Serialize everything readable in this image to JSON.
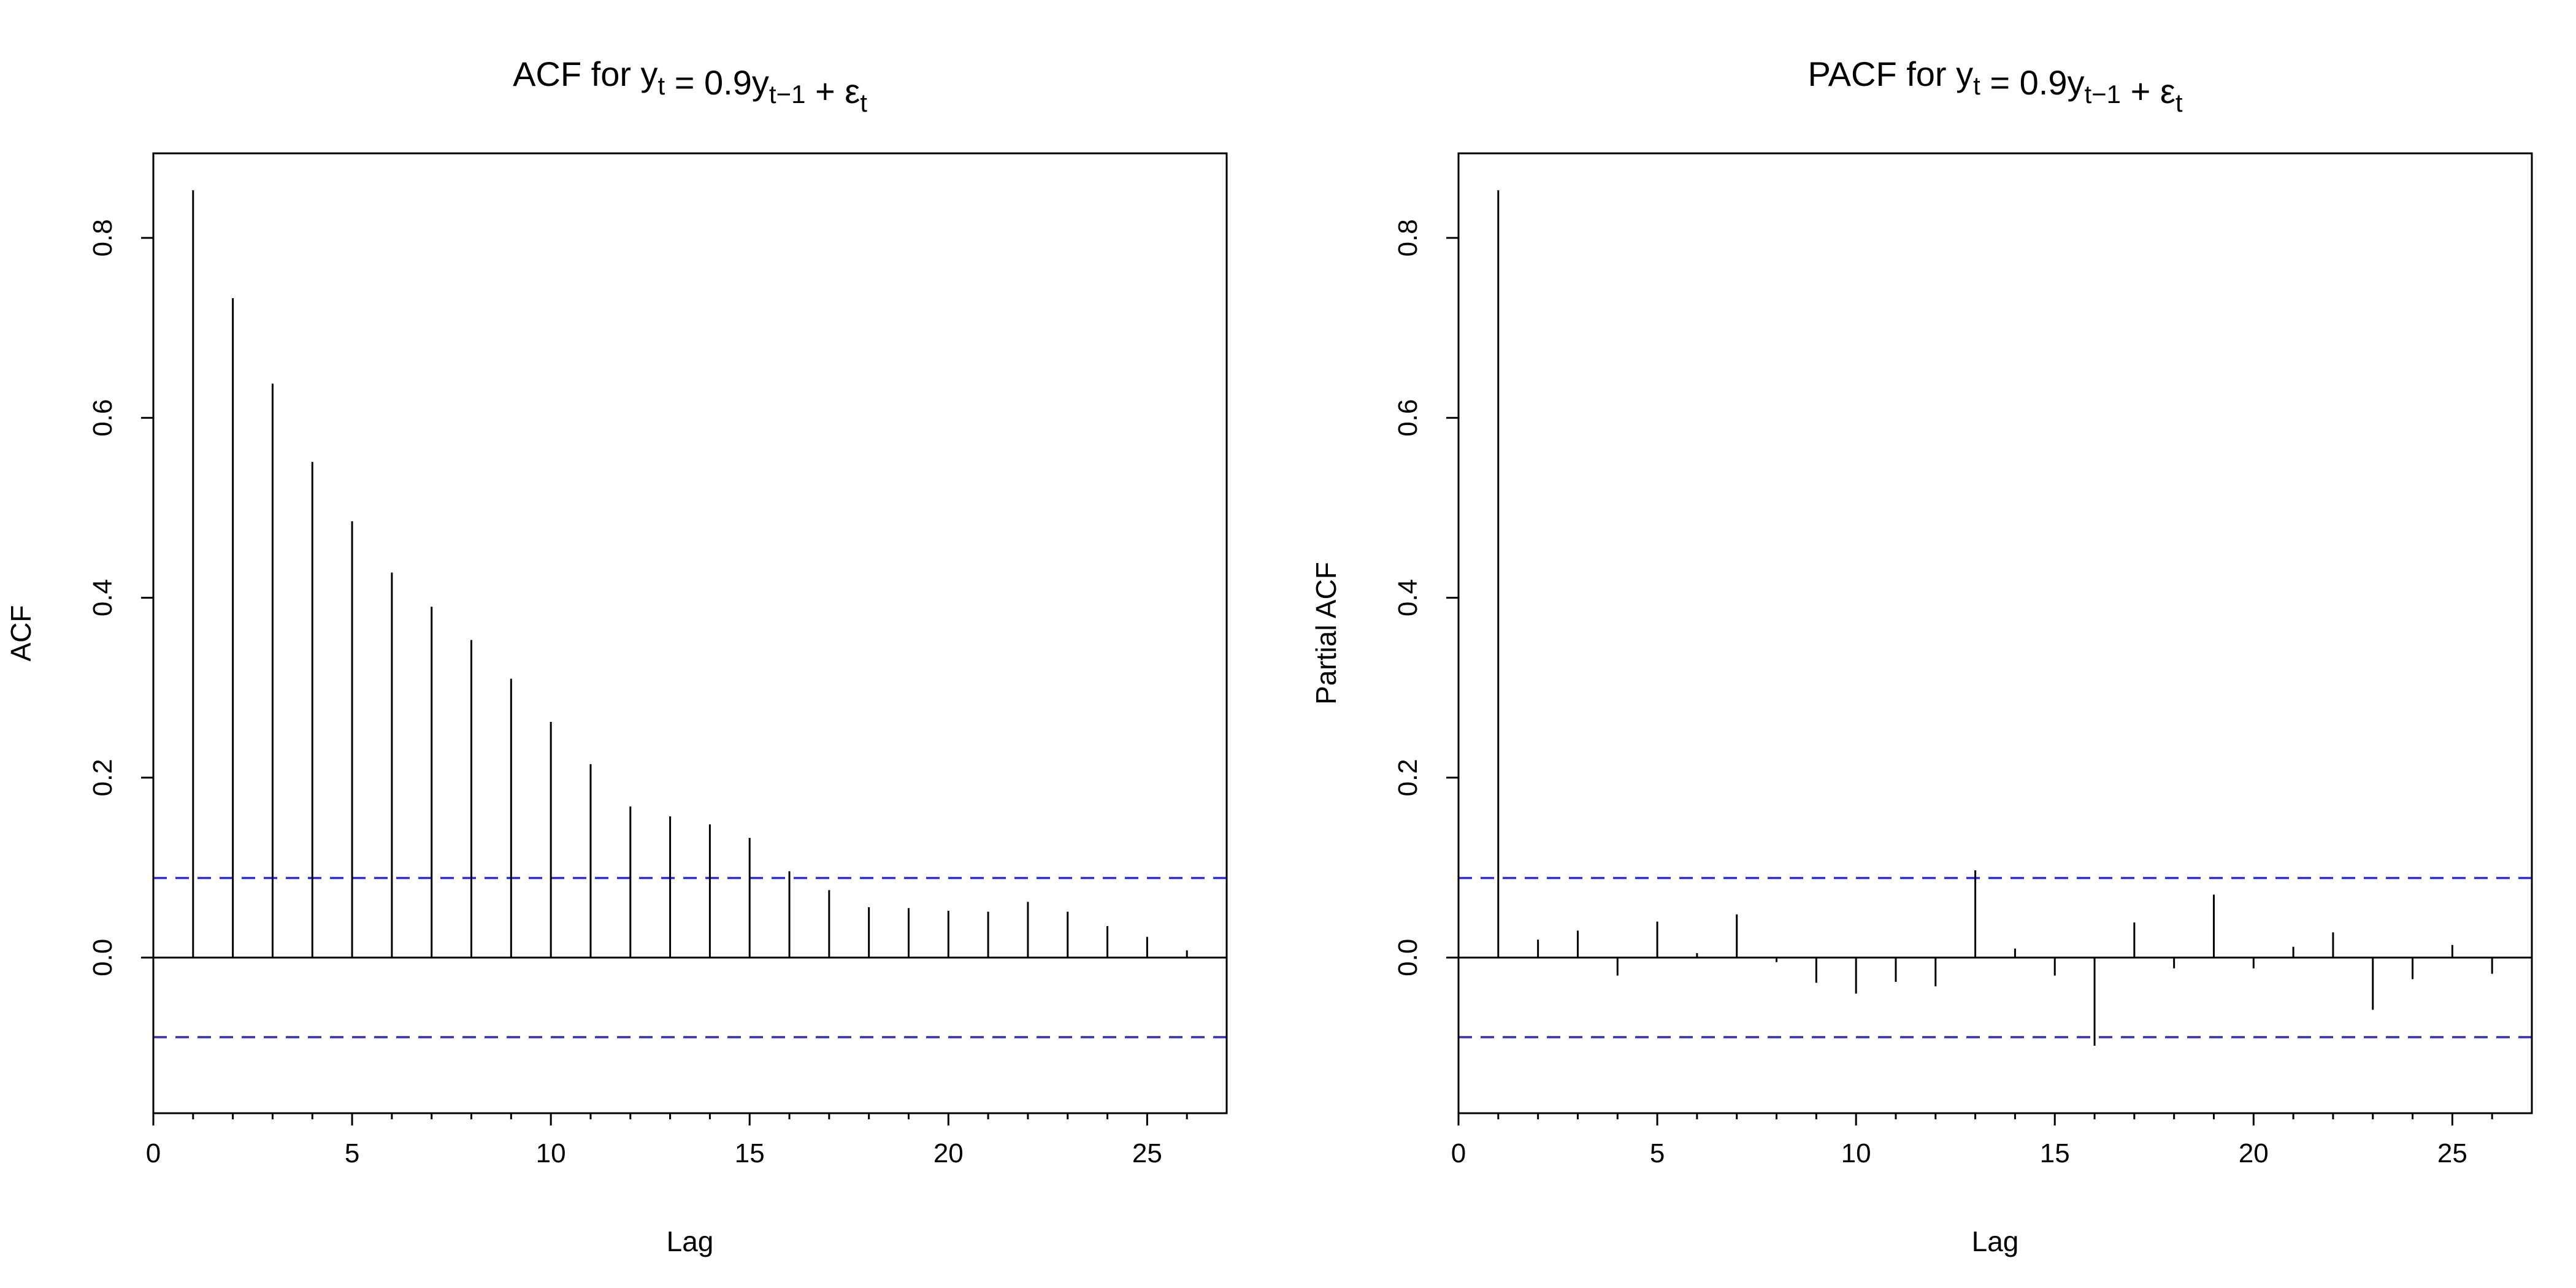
{
  "colors": {
    "spike": "#000000",
    "confidence_band": "#2b2bd9",
    "frame": "#000000",
    "background": "#ffffff"
  },
  "chart_data": [
    {
      "type": "bar",
      "title": {
        "prefix": "ACF for",
        "formula_parts": [
          {
            "text": "y",
            "sub": "t"
          },
          {
            "text": " = 0.9y",
            "sub": "t−1"
          },
          {
            "text": " + ε",
            "sub": "t"
          }
        ]
      },
      "xlabel": "Lag",
      "ylabel": "ACF",
      "xlim": [
        0,
        27
      ],
      "ylim": [
        -0.173,
        0.894
      ],
      "x_ticks": [
        0,
        5,
        10,
        15,
        20,
        25
      ],
      "y_ticks": [
        0.0,
        0.2,
        0.4,
        0.6,
        0.8
      ],
      "x_tick_labels": [
        "0",
        "5",
        "10",
        "15",
        "20",
        "25"
      ],
      "y_tick_labels": [
        "0.0",
        "0.2",
        "0.4",
        "0.6",
        "0.8"
      ],
      "confidence_bound": 0.0885,
      "grid": false,
      "series": [
        {
          "lags": [
            1,
            2,
            3,
            4,
            5,
            6,
            7,
            8,
            9,
            10,
            11,
            12,
            13,
            14,
            15,
            16,
            17,
            18,
            19,
            20,
            21,
            22,
            23,
            24,
            25,
            26
          ],
          "values": [
            0.853,
            0.733,
            0.638,
            0.551,
            0.485,
            0.428,
            0.39,
            0.353,
            0.31,
            0.262,
            0.215,
            0.168,
            0.157,
            0.148,
            0.133,
            0.096,
            0.075,
            0.056,
            0.055,
            0.052,
            0.051,
            0.062,
            0.051,
            0.035,
            0.023,
            0.008
          ]
        }
      ]
    },
    {
      "type": "bar",
      "title": {
        "prefix": "PACF for",
        "formula_parts": [
          {
            "text": "y",
            "sub": "t"
          },
          {
            "text": " = 0.9y",
            "sub": "t−1"
          },
          {
            "text": " + ε",
            "sub": "t"
          }
        ]
      },
      "xlabel": "Lag",
      "ylabel": "Partial ACF",
      "xlim": [
        0,
        27
      ],
      "ylim": [
        -0.173,
        0.894
      ],
      "x_ticks": [
        0,
        5,
        10,
        15,
        20,
        25
      ],
      "y_ticks": [
        0.0,
        0.2,
        0.4,
        0.6,
        0.8
      ],
      "x_tick_labels": [
        "0",
        "5",
        "10",
        "15",
        "20",
        "25"
      ],
      "y_tick_labels": [
        "0.0",
        "0.2",
        "0.4",
        "0.6",
        "0.8"
      ],
      "confidence_bound": 0.0885,
      "grid": false,
      "series": [
        {
          "lags": [
            1,
            2,
            3,
            4,
            5,
            6,
            7,
            8,
            9,
            10,
            11,
            12,
            13,
            14,
            15,
            16,
            17,
            18,
            19,
            20,
            21,
            22,
            23,
            24,
            25,
            26
          ],
          "values": [
            0.853,
            0.02,
            0.03,
            -0.02,
            0.04,
            0.005,
            0.048,
            -0.005,
            -0.028,
            -0.04,
            -0.027,
            -0.032,
            0.097,
            0.01,
            -0.02,
            -0.098,
            0.039,
            -0.012,
            0.07,
            -0.012,
            0.012,
            0.028,
            -0.058,
            -0.024,
            0.014,
            -0.018
          ]
        }
      ]
    }
  ]
}
